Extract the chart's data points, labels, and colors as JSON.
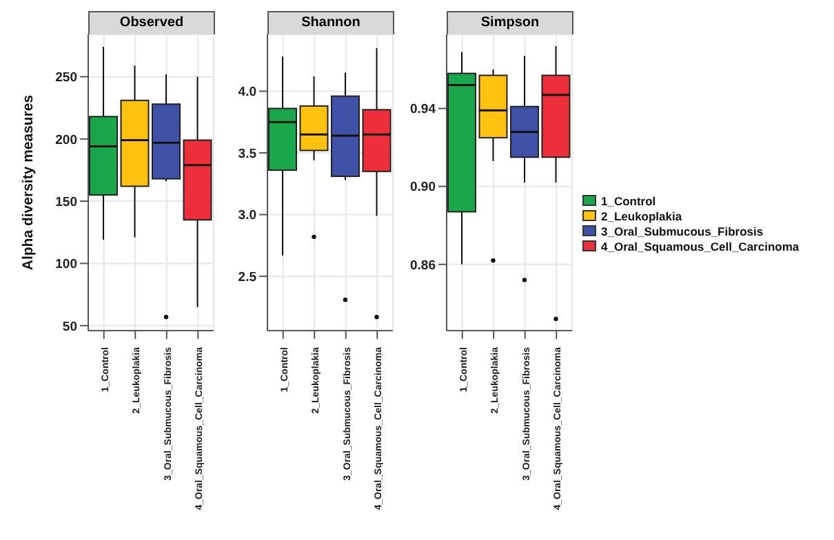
{
  "chart_data": [
    {
      "type": "box",
      "title": "Observed",
      "ylabel": "Alpha diversity measures",
      "categories": [
        "1_Control",
        "2_Leukoplakia",
        "3_Oral_Submucous_Fibrosis",
        "4_Oral_Squamous_Cell_Carcinoma"
      ],
      "ylim": [
        46,
        284
      ],
      "yticks": [
        50,
        100,
        150,
        200,
        250
      ],
      "grid": true,
      "series": [
        {
          "color": "#1aa64a",
          "boxes": [
            {
              "low": 119,
              "q1": 155,
              "median": 194,
              "q3": 218,
              "high": 274
            },
            null,
            null,
            null
          ]
        },
        {
          "color": "#ffc20e",
          "boxes": [
            null,
            {
              "low": 121,
              "q1": 162,
              "median": 199,
              "q3": 231,
              "high": 259
            },
            null,
            null
          ]
        },
        {
          "color": "#4052a8",
          "boxes": [
            null,
            null,
            {
              "low": 166,
              "q1": 168,
              "median": 197,
              "q3": 228,
              "high": 252,
              "outliers": [
                57
              ]
            },
            null
          ]
        },
        {
          "color": "#ee2e3b",
          "boxes": [
            null,
            null,
            null,
            {
              "low": 65,
              "q1": 135,
              "median": 179,
              "q3": 199,
              "high": 250
            }
          ]
        }
      ]
    },
    {
      "type": "box",
      "title": "Shannon",
      "categories": [
        "1_Control",
        "2_Leukoplakia",
        "3_Oral_Submucous_Fibrosis",
        "4_Oral_Squamous_Cell_Carcinoma"
      ],
      "ylim": [
        2.06,
        4.46
      ],
      "yticks": [
        {
          "value": 2.5,
          "label": "2.5"
        },
        {
          "value": 3,
          "label": "3.0"
        },
        {
          "value": 3.5,
          "label": "3.5"
        },
        {
          "value": 4,
          "label": "4.0"
        }
      ],
      "grid": true,
      "series": [
        {
          "color": "#1aa64a",
          "boxes": [
            {
              "low": 2.67,
              "q1": 3.36,
              "median": 3.75,
              "q3": 3.86,
              "high": 4.28
            },
            null,
            null,
            null
          ]
        },
        {
          "color": "#ffc20e",
          "boxes": [
            null,
            {
              "low": 3.44,
              "q1": 3.52,
              "median": 3.65,
              "q3": 3.88,
              "high": 4.12,
              "outliers": [
                2.82
              ]
            },
            null,
            null
          ]
        },
        {
          "color": "#4052a8",
          "boxes": [
            null,
            null,
            {
              "low": 3.28,
              "q1": 3.31,
              "median": 3.64,
              "q3": 3.96,
              "high": 4.15,
              "outliers": [
                2.31
              ]
            },
            null
          ]
        },
        {
          "color": "#ee2e3b",
          "boxes": [
            null,
            null,
            null,
            {
              "low": 2.99,
              "q1": 3.35,
              "median": 3.65,
              "q3": 3.85,
              "high": 4.35,
              "outliers": [
                2.17
              ]
            }
          ]
        }
      ]
    },
    {
      "type": "box",
      "title": "Simpson",
      "categories": [
        "1_Control",
        "2_Leukoplakia",
        "3_Oral_Submucous_Fibrosis",
        "4_Oral_Squamous_Cell_Carcinoma"
      ],
      "ylim": [
        0.826,
        0.978
      ],
      "yticks": [
        {
          "value": 0.86,
          "label": "0.86"
        },
        {
          "value": 0.9,
          "label": "0.90"
        },
        {
          "value": 0.94,
          "label": "0.94"
        }
      ],
      "grid": true,
      "legend": "right",
      "series": [
        {
          "name": "1_Control",
          "color": "#1aa64a",
          "boxes": [
            {
              "low": 0.86,
              "q1": 0.887,
              "median": 0.952,
              "q3": 0.958,
              "high": 0.969
            },
            null,
            null,
            null
          ]
        },
        {
          "name": "2_Leukoplakia",
          "color": "#ffc20e",
          "boxes": [
            null,
            {
              "low": 0.913,
              "q1": 0.925,
              "median": 0.939,
              "q3": 0.957,
              "high": 0.96,
              "outliers": [
                0.862
              ]
            },
            null,
            null
          ]
        },
        {
          "name": "3_Oral_Submucous_Fibrosis",
          "color": "#4052a8",
          "boxes": [
            null,
            null,
            {
              "low": 0.902,
              "q1": 0.915,
              "median": 0.928,
              "q3": 0.941,
              "high": 0.967,
              "outliers": [
                0.852
              ]
            },
            null
          ]
        },
        {
          "name": "4_Oral_Squamous_Cell_Carcinoma",
          "color": "#ee2e3b",
          "boxes": [
            null,
            null,
            null,
            {
              "low": 0.902,
              "q1": 0.915,
              "median": 0.947,
              "q3": 0.957,
              "high": 0.972,
              "outliers": [
                0.832
              ]
            }
          ]
        }
      ]
    }
  ]
}
